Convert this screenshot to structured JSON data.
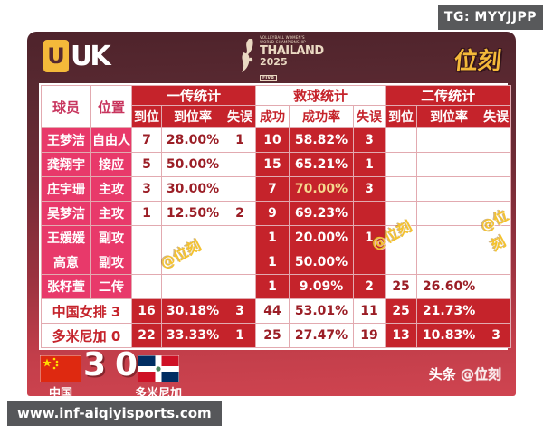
{
  "page": {
    "tg_badge": "TG: MYYJJPP",
    "url": "www.inf-aiqiyisports.com"
  },
  "header": {
    "left_logo_block": "U",
    "left_logo_rest": "UK",
    "center_logo": {
      "line1": "VOLLEYBALL WOMEN'S",
      "line2": "WORLD CHAMPIONSHIP",
      "title": "THAILAND",
      "year": "2025",
      "org": "FIVB"
    },
    "right_logo": "位刻"
  },
  "chart_data": {
    "type": "table",
    "leading_columns": [
      "球员",
      "位置"
    ],
    "column_groups": [
      {
        "label": "一传统计",
        "columns": [
          "到位",
          "到位率",
          "失误"
        ]
      },
      {
        "label": "救球统计",
        "columns": [
          "成功",
          "成功率",
          "失误"
        ]
      },
      {
        "label": "二传统计",
        "columns": [
          "到位",
          "到位率",
          "失误"
        ]
      }
    ],
    "rows": [
      {
        "name": "王梦洁",
        "position": "自由人",
        "values": [
          "7",
          "28.00%",
          "1",
          "10",
          "58.82%",
          "3",
          "",
          "",
          ""
        ]
      },
      {
        "name": "龚翔宇",
        "position": "接应",
        "values": [
          "5",
          "50.00%",
          "",
          "15",
          "65.21%",
          "1",
          "",
          "",
          ""
        ]
      },
      {
        "name": "庄宇珊",
        "position": "主攻",
        "values": [
          "3",
          "30.00%",
          "",
          "7",
          "70.00%",
          "3",
          "",
          "",
          ""
        ],
        "hl": 4
      },
      {
        "name": "吴梦洁",
        "position": "主攻",
        "values": [
          "1",
          "12.50%",
          "2",
          "9",
          "69.23%",
          "",
          "",
          "",
          ""
        ]
      },
      {
        "name": "王媛媛",
        "position": "副攻",
        "values": [
          "",
          "",
          "",
          "1",
          "20.00%",
          "1",
          "",
          "",
          ""
        ]
      },
      {
        "name": "高意",
        "position": "副攻",
        "values": [
          "",
          "",
          "",
          "1",
          "50.00%",
          "",
          "",
          "",
          ""
        ]
      },
      {
        "name": "张籽萱",
        "position": "二传",
        "values": [
          "",
          "",
          "",
          "1",
          "9.09%",
          "2",
          "25",
          "26.60%",
          ""
        ]
      }
    ],
    "total_rows": [
      {
        "label": "中国女排 3",
        "values": [
          "16",
          "30.18%",
          "3",
          "44",
          "53.01%",
          "11",
          "25",
          "21.73%",
          ""
        ]
      },
      {
        "label": "多米尼加 0",
        "values": [
          "22",
          "33.33%",
          "1",
          "25",
          "27.47%",
          "19",
          "13",
          "10.83%",
          "3"
        ]
      }
    ]
  },
  "footer": {
    "team_left": {
      "name": "中国",
      "score": "3"
    },
    "team_right": {
      "name": "多米尼加",
      "score": "0"
    },
    "credit_prefix": "头条 ",
    "credit_handle": "@位刻"
  },
  "watermark": "@位刻",
  "colors": {
    "card_maroon": "#542830",
    "card_crimson": "#cf4450",
    "cell_red": "#c5232b",
    "cell_pink": "#e8396a",
    "deep_red_text": "#9b1e26",
    "gold": "#f4b93a",
    "highlight_text": "#f5d98e",
    "badge_gray": "#58595b"
  }
}
